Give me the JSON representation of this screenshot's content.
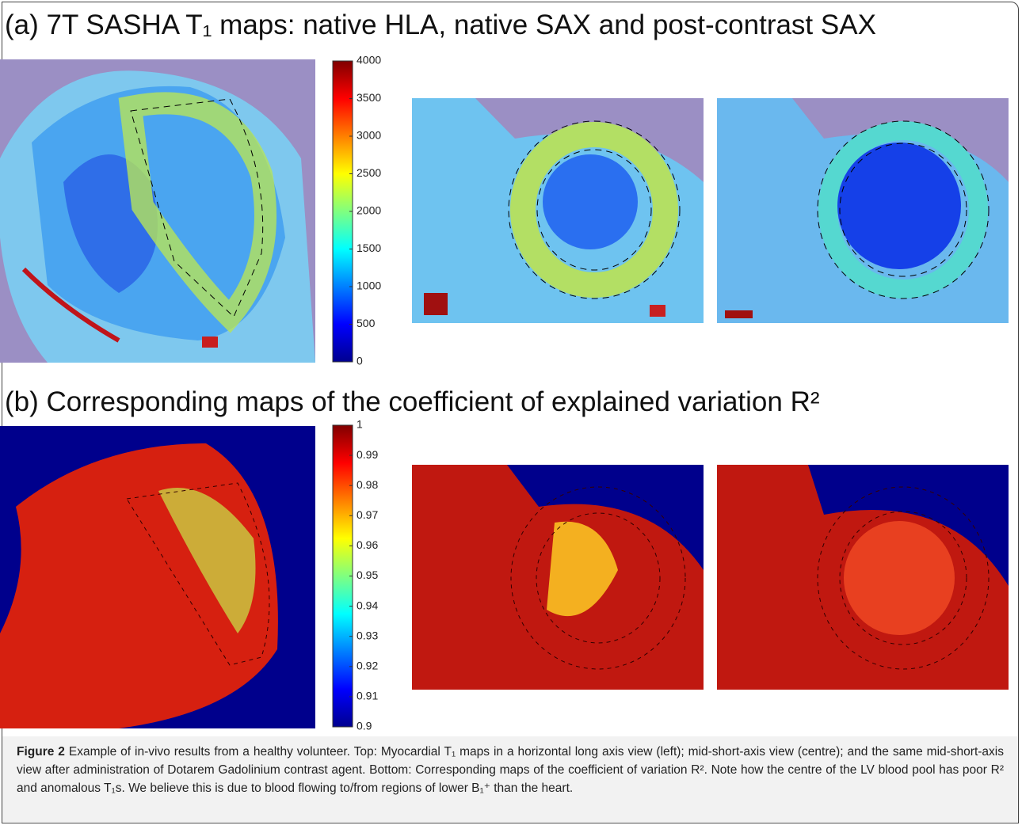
{
  "panel_a": {
    "title": "(a) 7T SASHA T₁ maps: native HLA, native SAX and post-contrast SAX",
    "colorbar": {
      "lim": [
        0,
        4000
      ],
      "ticks": [
        0,
        500,
        1000,
        1500,
        2000,
        2500,
        3000,
        3500,
        4000
      ]
    }
  },
  "panel_b": {
    "title": "(b) Corresponding maps of the coefficient of explained variation R²",
    "colorbar": {
      "lim": [
        0.9,
        1
      ],
      "ticks": [
        0.9,
        0.91,
        0.92,
        0.93,
        0.94,
        0.95,
        0.96,
        0.97,
        0.98,
        0.99,
        1
      ]
    }
  },
  "caption": {
    "label": "Figure 2",
    "text": "Example of in-vivo results from a healthy volunteer. Top: Myocardial T₁ maps in a horizontal long axis view (left); mid-short-axis view (centre); and the same mid-short-axis view after administration of Dotarem Gadolinium contrast agent. Bottom: Corresponding maps of the coefficient of variation R². Note how the centre of the LV blood pool has poor R² and anomalous T₁s. We believe this is due to blood flowing to/from regions of lower B₁⁺ than the heart."
  }
}
